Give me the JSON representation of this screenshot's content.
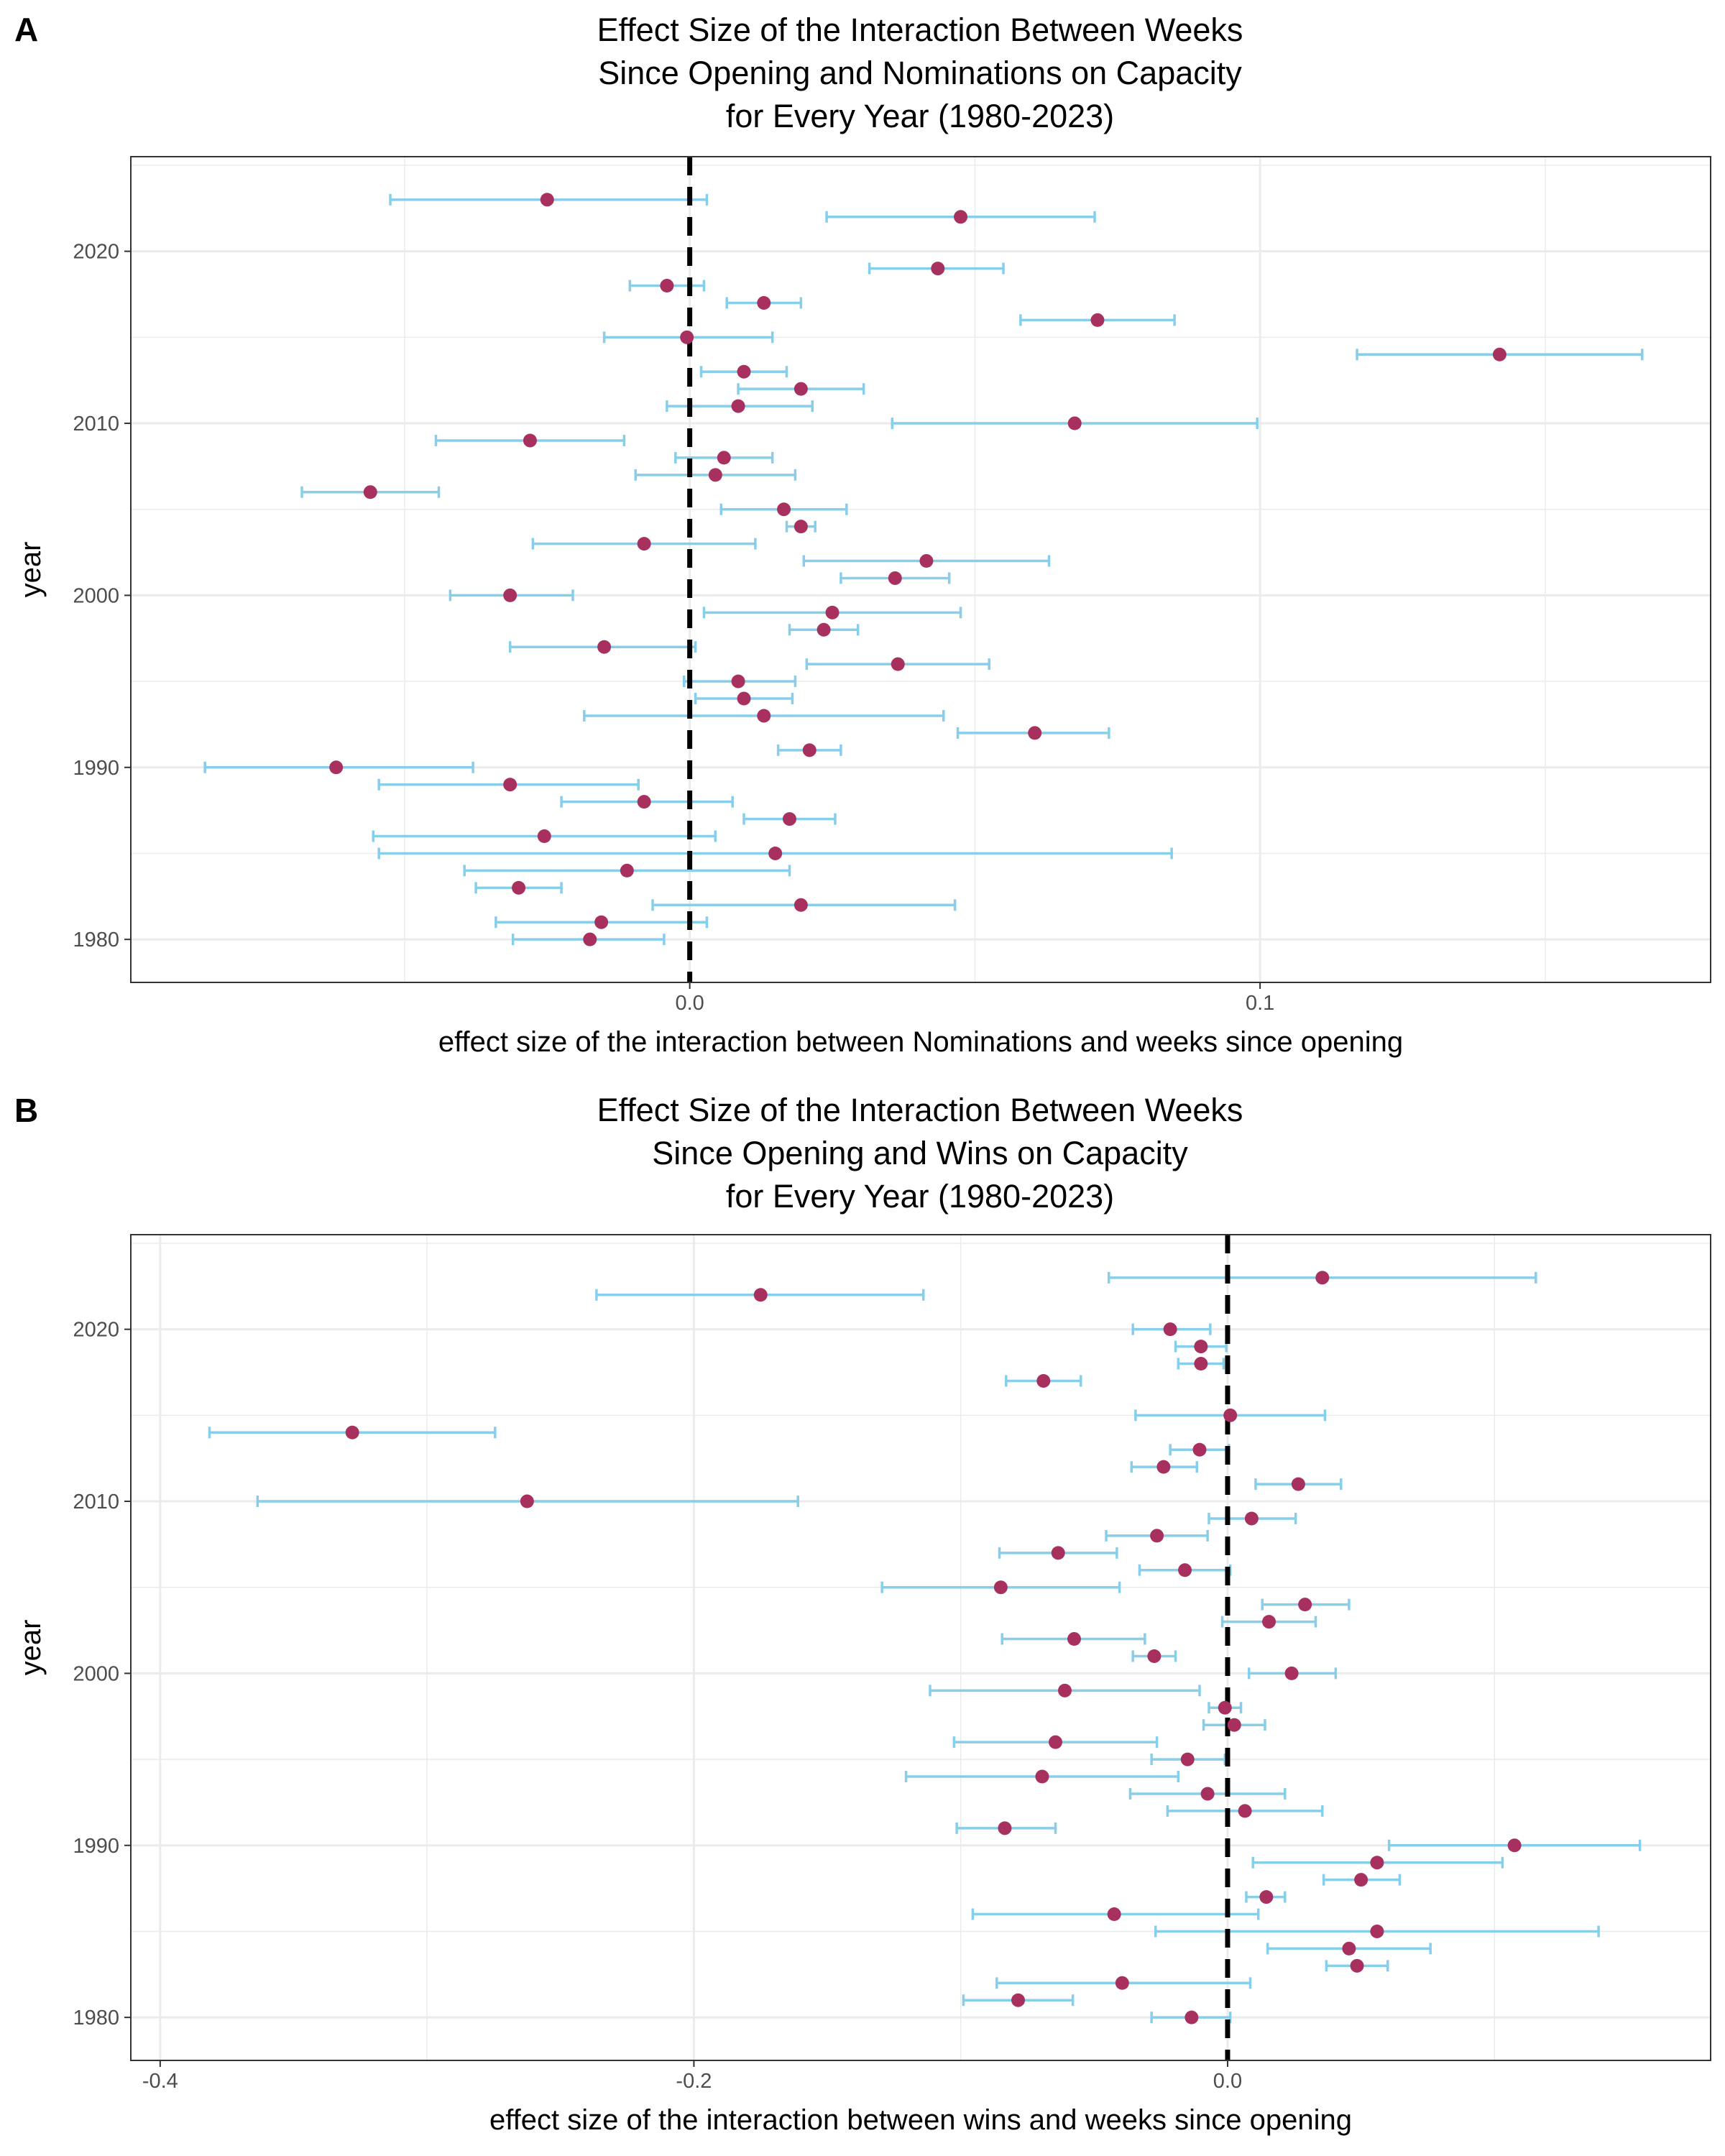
{
  "colors": {
    "point": "#a8305f",
    "errorbar": "#87ceeb",
    "zero_line": "#000000",
    "grid": "#ebebeb",
    "panel_border": "#333333",
    "tick_text": "#4d4d4d"
  },
  "panels": [
    {
      "letter": "A",
      "title_lines": [
        "Effect Size of the Interaction Between Weeks",
        "Since Opening and Nominations on Capacity",
        "for Every Year (1980-2023)"
      ]
    },
    {
      "letter": "B",
      "title_lines": [
        "Effect Size of the Interaction Between Weeks",
        "Since Opening and Wins on Capacity",
        "for Every Year (1980-2023)"
      ]
    }
  ],
  "chart_data": [
    {
      "type": "scatter",
      "title": "Effect Size of the Interaction Between Weeks Since Opening and Nominations on Capacity for Every Year (1980-2023)",
      "xlabel": "effect size of the interaction between Nominations and weeks since opening",
      "ylabel": "year",
      "xlim": [
        -0.098,
        0.179
      ],
      "ylim": [
        1977.5,
        2025.5
      ],
      "x_ticks": [
        0.0,
        0.1
      ],
      "x_tick_labels": [
        "0.0",
        "0.1"
      ],
      "y_ticks": [
        1980,
        1990,
        2000,
        2010,
        2020
      ],
      "y_tick_labels": [
        "1980",
        "1990",
        "2000",
        "2010",
        "2020"
      ],
      "grid": true,
      "zero_line": 0,
      "points": [
        {
          "year": 1980,
          "estimate": -0.0175,
          "lower": -0.031,
          "upper": -0.0045
        },
        {
          "year": 1981,
          "estimate": -0.0155,
          "lower": -0.034,
          "upper": 0.003
        },
        {
          "year": 1982,
          "estimate": 0.0195,
          "lower": -0.0065,
          "upper": 0.0465
        },
        {
          "year": 1983,
          "estimate": -0.03,
          "lower": -0.0375,
          "upper": -0.0225
        },
        {
          "year": 1984,
          "estimate": -0.011,
          "lower": -0.0395,
          "upper": 0.0175
        },
        {
          "year": 1985,
          "estimate": 0.015,
          "lower": -0.0545,
          "upper": 0.0845
        },
        {
          "year": 1986,
          "estimate": -0.0255,
          "lower": -0.0555,
          "upper": 0.0045
        },
        {
          "year": 1987,
          "estimate": 0.0175,
          "lower": 0.0095,
          "upper": 0.0255
        },
        {
          "year": 1988,
          "estimate": -0.008,
          "lower": -0.0225,
          "upper": 0.0075
        },
        {
          "year": 1989,
          "estimate": -0.0315,
          "lower": -0.0545,
          "upper": -0.009
        },
        {
          "year": 1990,
          "estimate": -0.062,
          "lower": -0.085,
          "upper": -0.038
        },
        {
          "year": 1991,
          "estimate": 0.021,
          "lower": 0.0155,
          "upper": 0.0265
        },
        {
          "year": 1992,
          "estimate": 0.0605,
          "lower": 0.047,
          "upper": 0.0735
        },
        {
          "year": 1993,
          "estimate": 0.013,
          "lower": -0.0185,
          "upper": 0.0445
        },
        {
          "year": 1994,
          "estimate": 0.0095,
          "lower": 0.001,
          "upper": 0.018
        },
        {
          "year": 1995,
          "estimate": 0.0085,
          "lower": -0.001,
          "upper": 0.0185
        },
        {
          "year": 1996,
          "estimate": 0.0365,
          "lower": 0.0205,
          "upper": 0.0525
        },
        {
          "year": 1997,
          "estimate": -0.015,
          "lower": -0.0315,
          "upper": 0.001
        },
        {
          "year": 1998,
          "estimate": 0.0235,
          "lower": 0.0175,
          "upper": 0.0295
        },
        {
          "year": 1999,
          "estimate": 0.025,
          "lower": 0.0025,
          "upper": 0.0475
        },
        {
          "year": 2000,
          "estimate": -0.0315,
          "lower": -0.042,
          "upper": -0.0205
        },
        {
          "year": 2001,
          "estimate": 0.036,
          "lower": 0.0265,
          "upper": 0.0455
        },
        {
          "year": 2002,
          "estimate": 0.0415,
          "lower": 0.02,
          "upper": 0.063
        },
        {
          "year": 2003,
          "estimate": -0.008,
          "lower": -0.0275,
          "upper": 0.0115
        },
        {
          "year": 2004,
          "estimate": 0.0195,
          "lower": 0.017,
          "upper": 0.022
        },
        {
          "year": 2005,
          "estimate": 0.0165,
          "lower": 0.0055,
          "upper": 0.0275
        },
        {
          "year": 2006,
          "estimate": -0.056,
          "lower": -0.068,
          "upper": -0.044
        },
        {
          "year": 2007,
          "estimate": 0.0045,
          "lower": -0.0095,
          "upper": 0.0185
        },
        {
          "year": 2008,
          "estimate": 0.006,
          "lower": -0.0025,
          "upper": 0.0145
        },
        {
          "year": 2009,
          "estimate": -0.028,
          "lower": -0.0445,
          "upper": -0.0115
        },
        {
          "year": 2010,
          "estimate": 0.0675,
          "lower": 0.0355,
          "upper": 0.0995
        },
        {
          "year": 2011,
          "estimate": 0.0085,
          "lower": -0.004,
          "upper": 0.0215
        },
        {
          "year": 2012,
          "estimate": 0.0195,
          "lower": 0.0085,
          "upper": 0.0305
        },
        {
          "year": 2013,
          "estimate": 0.0095,
          "lower": 0.002,
          "upper": 0.017
        },
        {
          "year": 2014,
          "estimate": 0.142,
          "lower": 0.117,
          "upper": 0.167
        },
        {
          "year": 2015,
          "estimate": -0.0005,
          "lower": -0.015,
          "upper": 0.0145
        },
        {
          "year": 2016,
          "estimate": 0.0715,
          "lower": 0.058,
          "upper": 0.085
        },
        {
          "year": 2017,
          "estimate": 0.013,
          "lower": 0.0065,
          "upper": 0.0195
        },
        {
          "year": 2018,
          "estimate": -0.004,
          "lower": -0.0105,
          "upper": 0.0025
        },
        {
          "year": 2019,
          "estimate": 0.0435,
          "lower": 0.0315,
          "upper": 0.055
        },
        {
          "year": 2020,
          "estimate": null,
          "lower": null,
          "upper": null
        },
        {
          "year": 2021,
          "estimate": null,
          "lower": null,
          "upper": null
        },
        {
          "year": 2022,
          "estimate": 0.0475,
          "lower": 0.024,
          "upper": 0.071
        },
        {
          "year": 2023,
          "estimate": -0.025,
          "lower": -0.0525,
          "upper": 0.003
        }
      ]
    },
    {
      "type": "scatter",
      "title": "Effect Size of the Interaction Between Weeks Since Opening and Wins on Capacity for Every Year (1980-2023)",
      "xlabel": "effect size of the interaction between wins and weeks since opening",
      "ylabel": "year",
      "xlim": [
        -0.411,
        0.181
      ],
      "ylim": [
        1977.5,
        2025.5
      ],
      "x_ticks": [
        -0.4,
        -0.2,
        0.0
      ],
      "x_tick_labels": [
        "-0.4",
        "-0.2",
        "0.0"
      ],
      "y_ticks": [
        1980,
        1990,
        2000,
        2010,
        2020
      ],
      "y_tick_labels": [
        "1980",
        "1990",
        "2000",
        "2010",
        "2020"
      ],
      "grid": true,
      "zero_line": 0,
      "points": [
        {
          "year": 1980,
          "estimate": -0.0135,
          "lower": -0.0285,
          "upper": 0.001
        },
        {
          "year": 1981,
          "estimate": -0.0785,
          "lower": -0.099,
          "upper": -0.058
        },
        {
          "year": 1982,
          "estimate": -0.0395,
          "lower": -0.0865,
          "upper": 0.0085
        },
        {
          "year": 1983,
          "estimate": 0.0485,
          "lower": 0.037,
          "upper": 0.06
        },
        {
          "year": 1984,
          "estimate": 0.0455,
          "lower": 0.015,
          "upper": 0.076
        },
        {
          "year": 1985,
          "estimate": 0.056,
          "lower": -0.027,
          "upper": 0.139
        },
        {
          "year": 1986,
          "estimate": -0.0425,
          "lower": -0.0955,
          "upper": 0.0115
        },
        {
          "year": 1987,
          "estimate": 0.0145,
          "lower": 0.007,
          "upper": 0.0215
        },
        {
          "year": 1988,
          "estimate": 0.05,
          "lower": 0.036,
          "upper": 0.0645
        },
        {
          "year": 1989,
          "estimate": 0.056,
          "lower": 0.0095,
          "upper": 0.103
        },
        {
          "year": 1990,
          "estimate": 0.1075,
          "lower": 0.0605,
          "upper": 0.1545
        },
        {
          "year": 1991,
          "estimate": -0.0835,
          "lower": -0.1015,
          "upper": -0.0645
        },
        {
          "year": 1992,
          "estimate": 0.0065,
          "lower": -0.0225,
          "upper": 0.0355
        },
        {
          "year": 1993,
          "estimate": -0.0075,
          "lower": -0.0365,
          "upper": 0.0215
        },
        {
          "year": 1994,
          "estimate": -0.0695,
          "lower": -0.1205,
          "upper": -0.0185
        },
        {
          "year": 1995,
          "estimate": -0.015,
          "lower": -0.0285,
          "upper": -0.001
        },
        {
          "year": 1996,
          "estimate": -0.0645,
          "lower": -0.1025,
          "upper": -0.0265
        },
        {
          "year": 1997,
          "estimate": 0.0025,
          "lower": -0.009,
          "upper": 0.014
        },
        {
          "year": 1998,
          "estimate": -0.001,
          "lower": -0.007,
          "upper": 0.005
        },
        {
          "year": 1999,
          "estimate": -0.061,
          "lower": -0.1115,
          "upper": -0.0105
        },
        {
          "year": 2000,
          "estimate": 0.024,
          "lower": 0.008,
          "upper": 0.0405
        },
        {
          "year": 2001,
          "estimate": -0.0275,
          "lower": -0.0355,
          "upper": -0.0195
        },
        {
          "year": 2002,
          "estimate": -0.0575,
          "lower": -0.0845,
          "upper": -0.031
        },
        {
          "year": 2003,
          "estimate": 0.0155,
          "lower": -0.002,
          "upper": 0.033
        },
        {
          "year": 2004,
          "estimate": 0.029,
          "lower": 0.013,
          "upper": 0.0455
        },
        {
          "year": 2005,
          "estimate": -0.085,
          "lower": -0.1295,
          "upper": -0.0405
        },
        {
          "year": 2006,
          "estimate": -0.016,
          "lower": -0.033,
          "upper": 0.001
        },
        {
          "year": 2007,
          "estimate": -0.0635,
          "lower": -0.0855,
          "upper": -0.0415
        },
        {
          "year": 2008,
          "estimate": -0.0265,
          "lower": -0.0455,
          "upper": -0.0075
        },
        {
          "year": 2009,
          "estimate": 0.009,
          "lower": -0.007,
          "upper": 0.0255
        },
        {
          "year": 2010,
          "estimate": -0.2625,
          "lower": -0.3635,
          "upper": -0.161
        },
        {
          "year": 2011,
          "estimate": 0.0265,
          "lower": 0.0105,
          "upper": 0.0425
        },
        {
          "year": 2012,
          "estimate": -0.024,
          "lower": -0.036,
          "upper": -0.0115
        },
        {
          "year": 2013,
          "estimate": -0.0105,
          "lower": -0.0215,
          "upper": 0.0005
        },
        {
          "year": 2014,
          "estimate": -0.328,
          "lower": -0.3815,
          "upper": -0.2745
        },
        {
          "year": 2015,
          "estimate": 0.001,
          "lower": -0.0345,
          "upper": 0.0365
        },
        {
          "year": 2016,
          "estimate": null,
          "lower": null,
          "upper": null
        },
        {
          "year": 2017,
          "estimate": -0.069,
          "lower": -0.083,
          "upper": -0.055
        },
        {
          "year": 2018,
          "estimate": -0.01,
          "lower": -0.0185,
          "upper": -0.0015
        },
        {
          "year": 2019,
          "estimate": -0.01,
          "lower": -0.0195,
          "upper": -0.0005
        },
        {
          "year": 2020,
          "estimate": -0.0215,
          "lower": -0.0355,
          "upper": -0.0065
        },
        {
          "year": 2021,
          "estimate": null,
          "lower": null,
          "upper": null
        },
        {
          "year": 2022,
          "estimate": -0.175,
          "lower": -0.2365,
          "upper": -0.114
        },
        {
          "year": 2023,
          "estimate": 0.0355,
          "lower": -0.0445,
          "upper": 0.1155
        }
      ]
    }
  ]
}
